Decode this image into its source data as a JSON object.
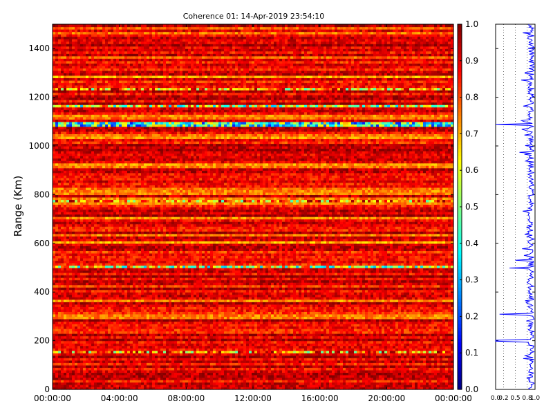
{
  "chart_data": [
    {
      "type": "heatmap",
      "title": "Coherence 01: 14-Apr-2019 23:54:10",
      "xlabel": "",
      "ylabel": "Range (Km)",
      "x_ticks": [
        "00:00:00",
        "04:00:00",
        "08:00:00",
        "12:00:00",
        "16:00:00",
        "20:00:00",
        "00:00:00"
      ],
      "y_ticks": [
        "0",
        "200",
        "400",
        "600",
        "800",
        "1000",
        "1200",
        "1400"
      ],
      "ylim": [
        0,
        1500
      ],
      "colorbar": {
        "colormap": "jet",
        "range": [
          0.0,
          1.0
        ],
        "ticks": [
          "0.0",
          "0.1",
          "0.2",
          "0.3",
          "0.4",
          "0.5",
          "0.6",
          "0.7",
          "0.8",
          "0.9",
          "1.0"
        ]
      },
      "z_range": [
        0.0,
        1.0
      ],
      "dominant_value_range": [
        0.8,
        1.0
      ],
      "low_coherence_bands": [
        {
          "range": 1090,
          "value": 0.15
        },
        {
          "range": 1165,
          "value": 0.3
        },
        {
          "range": 505,
          "value": 0.3
        },
        {
          "range": 635,
          "value": 0.5
        },
        {
          "range": 810,
          "value": 0.5
        },
        {
          "range": 300,
          "value": 0.5
        }
      ]
    },
    {
      "type": "line",
      "xlim": [
        0.0,
        1.0
      ],
      "x_ticks": [
        "0.0",
        "0.2",
        "0.5",
        "0.8",
        "1.0"
      ],
      "ylim": [
        0,
        1500
      ],
      "color": "#0000ff",
      "grid_x": true,
      "profile_baseline": 0.9,
      "dips": [
        {
          "range": 1090,
          "value": 0.0
        },
        {
          "range": 1165,
          "value": 0.7
        },
        {
          "range": 1300,
          "value": 0.75
        },
        {
          "range": 1000,
          "value": 0.75
        },
        {
          "range": 1270,
          "value": 0.65
        },
        {
          "range": 310,
          "value": 0.1
        },
        {
          "range": 530,
          "value": 0.5
        },
        {
          "range": 500,
          "value": 0.35
        },
        {
          "range": 440,
          "value": 0.8
        },
        {
          "range": 200,
          "value": 0.0
        },
        {
          "range": 140,
          "value": 0.75
        },
        {
          "range": 30,
          "value": 0.85
        }
      ]
    }
  ]
}
